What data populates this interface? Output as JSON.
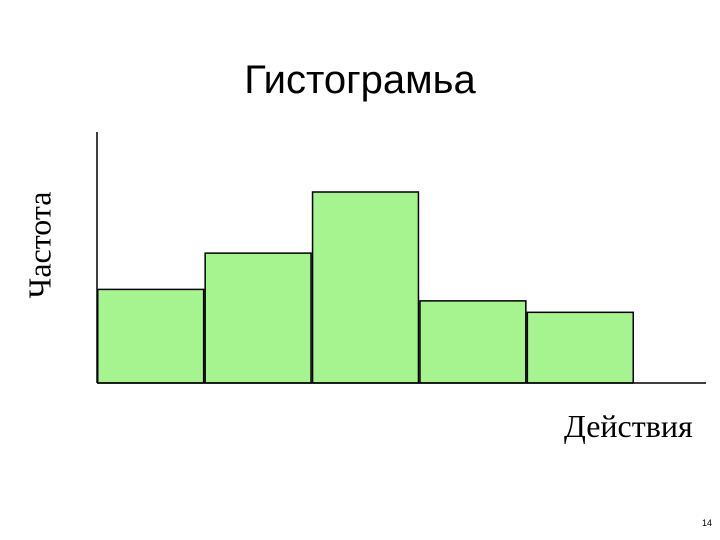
{
  "chart_data": {
    "type": "bar",
    "title": "Гистограмьа",
    "xlabel": "Действия",
    "ylabel": "Частота",
    "values": [
      0.49,
      0.68,
      1.0,
      0.43,
      0.37
    ],
    "ylim": [
      0,
      1.3
    ],
    "grid": false,
    "bar_fill": "#a6f490",
    "bar_stroke": "#000000"
  },
  "slide": {
    "page_number": "14"
  }
}
